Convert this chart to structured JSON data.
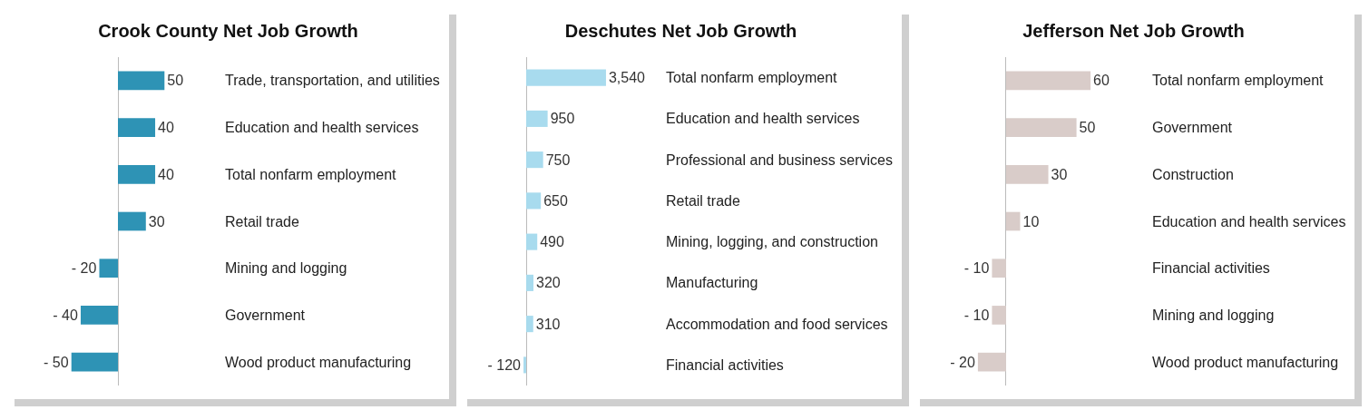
{
  "chart_data": [
    {
      "type": "bar",
      "orientation": "horizontal",
      "title": "Crook County Net Job Growth",
      "categories": [
        "Trade, transportation, and utilities",
        "Education and health services",
        "Total nonfarm employment",
        "Retail trade",
        "Mining and logging",
        "Government",
        "Wood product manufacturing"
      ],
      "values": [
        50,
        40,
        40,
        30,
        -20,
        -40,
        -50
      ],
      "value_labels": [
        "50",
        "40",
        "40",
        "30",
        "- 20",
        "- 40",
        "- 50"
      ],
      "color": "#2e93b5",
      "tick_labels": "y",
      "grid": false
    },
    {
      "type": "bar",
      "orientation": "horizontal",
      "title": "Deschutes Net Job Growth",
      "categories": [
        "Total nonfarm employment",
        "Education and health services",
        "Professional and business services",
        "Retail trade",
        "Mining, logging, and construction",
        "Manufacturing",
        "Accommodation and food services",
        "Financial activities"
      ],
      "values": [
        3540,
        950,
        750,
        650,
        490,
        320,
        310,
        -120
      ],
      "value_labels": [
        "3,540",
        "950",
        "750",
        "650",
        "490",
        "320",
        "310",
        "- 120"
      ],
      "color": "#a8dbee",
      "tick_labels": "y",
      "grid": false
    },
    {
      "type": "bar",
      "orientation": "horizontal",
      "title": "Jefferson Net Job Growth",
      "categories": [
        "Total nonfarm employment",
        "Government",
        "Construction",
        "Education and health services",
        "Financial activities",
        "Mining and logging",
        "Wood product manufacturing"
      ],
      "values": [
        60,
        50,
        30,
        10,
        -10,
        -10,
        -20
      ],
      "value_labels": [
        "60",
        "50",
        "30",
        "10",
        "- 10",
        "- 10",
        "- 20"
      ],
      "color": "#d9ccc9",
      "tick_labels": "y",
      "grid": false
    }
  ]
}
